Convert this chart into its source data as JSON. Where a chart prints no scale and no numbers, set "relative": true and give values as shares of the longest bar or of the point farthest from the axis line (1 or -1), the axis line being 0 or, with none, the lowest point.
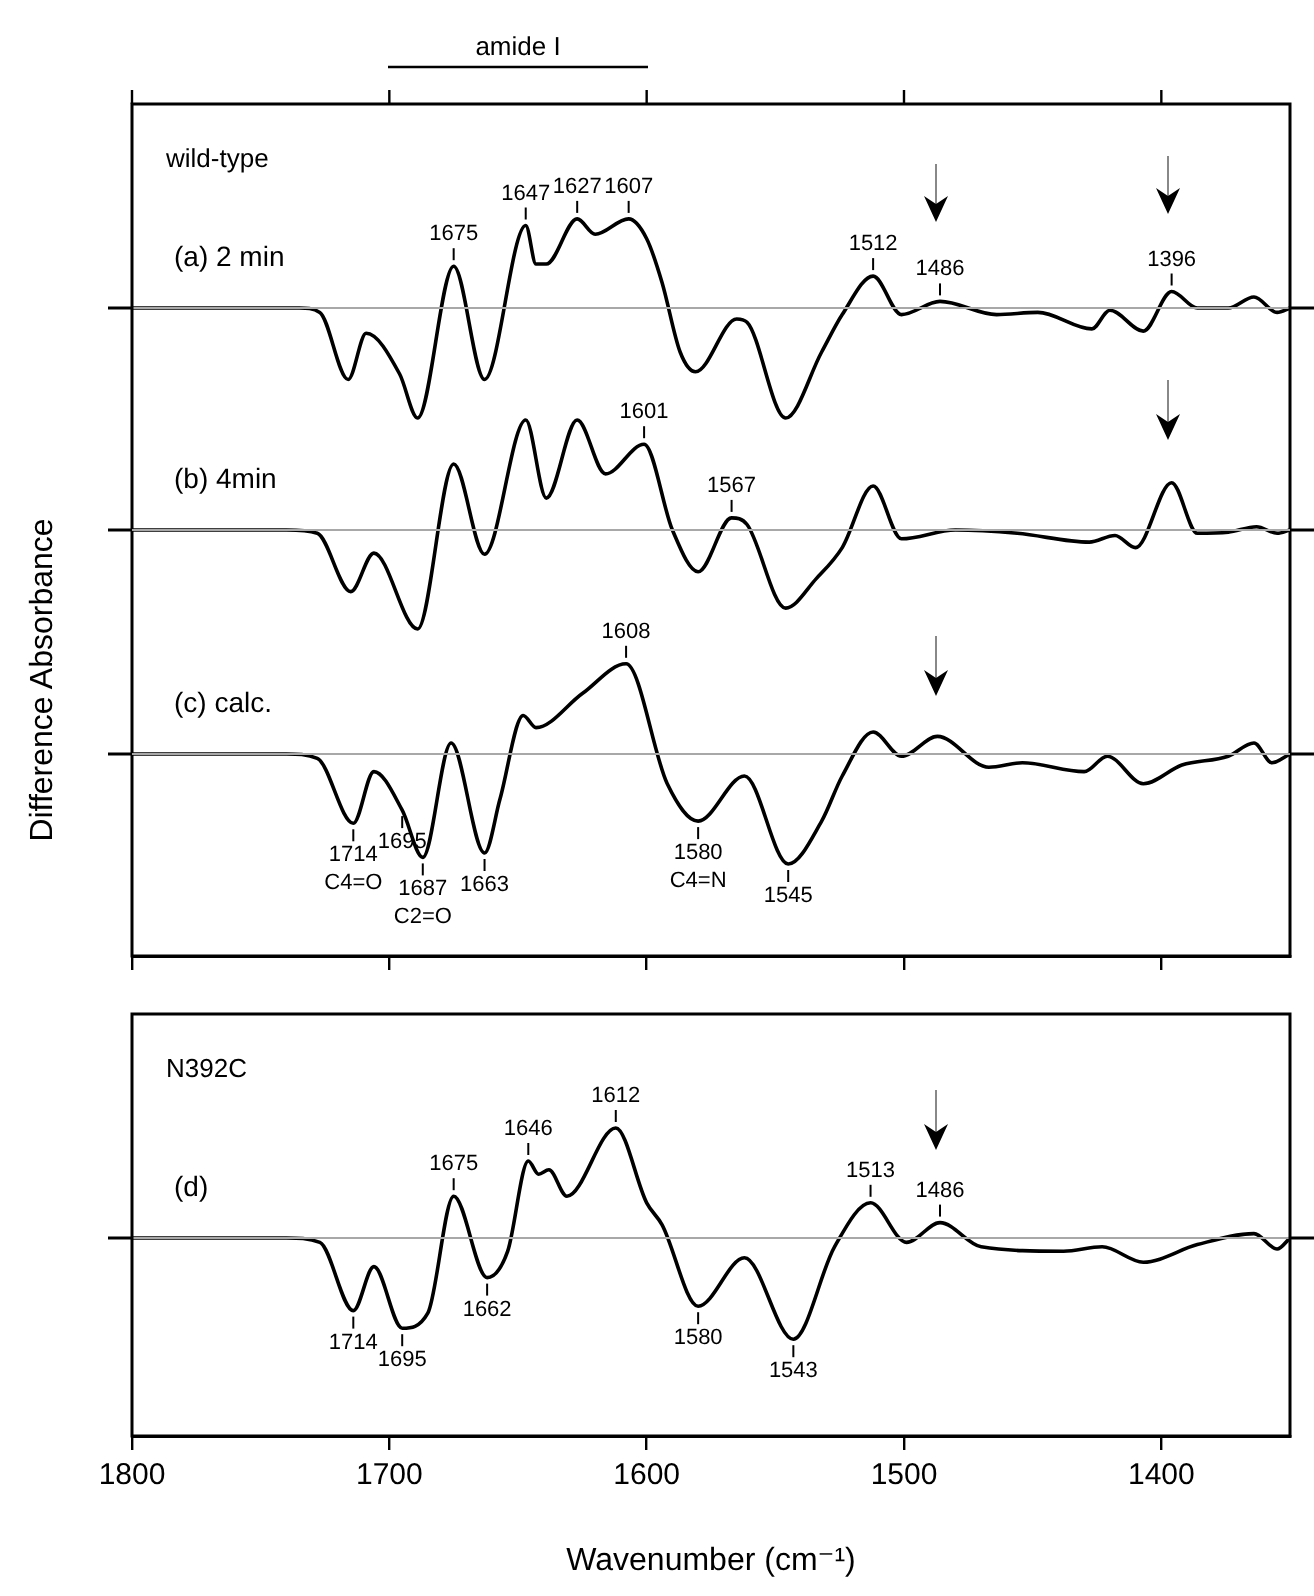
{
  "chart_data": [
    {
      "type": "line",
      "title": "wild-type",
      "ylabel": "Difference Absorbance",
      "relative": true,
      "xlim": [
        1800,
        1350
      ],
      "xticks": [
        1800,
        1700,
        1600,
        1500,
        1400
      ],
      "tick_labels": false,
      "series": [
        {
          "name": "(a) 2 min",
          "color": "#000000",
          "x": [
            1800,
            1760,
            1735,
            1727,
            1716,
            1709,
            1696,
            1689,
            1675,
            1663,
            1647,
            1643,
            1639,
            1627,
            1620,
            1607,
            1600,
            1594,
            1587,
            1581,
            1565,
            1561,
            1546,
            1532,
            1524,
            1512,
            1501,
            1486,
            1464,
            1448,
            1427,
            1420,
            1407,
            1396,
            1386,
            1374,
            1364,
            1355,
            1350
          ],
          "values": [
            0,
            0,
            0,
            -0.04,
            -0.65,
            -0.23,
            -0.6,
            -1,
            0.38,
            -0.65,
            0.75,
            0.4,
            0.4,
            0.81,
            0.67,
            0.81,
            0.63,
            0.23,
            -0.4,
            -0.58,
            -0.1,
            -0.13,
            -1,
            -0.4,
            -0.06,
            0.29,
            -0.06,
            0.06,
            -0.06,
            -0.04,
            -0.19,
            -0.02,
            -0.21,
            0.15,
            0,
            0,
            0.1,
            -0.04,
            0
          ]
        }
      ],
      "annotations": [
        "amide I",
        {
          "text": "1675",
          "x": 1675,
          "y": 0.38
        },
        {
          "text": "1647",
          "x": 1647,
          "y": 0.75
        },
        {
          "text": "1627",
          "x": 1627,
          "y": 0.81
        },
        {
          "text": "1607",
          "x": 1607,
          "y": 0.81
        },
        {
          "text": "1512",
          "x": 1512,
          "y": 0.29
        },
        {
          "text": "1486",
          "x": 1486,
          "y": 0.06
        },
        {
          "text": "1396",
          "x": 1396,
          "y": 0.15
        }
      ]
    },
    {
      "type": "line",
      "relative": true,
      "xlim": [
        1800,
        1350
      ],
      "tick_labels": false,
      "series": [
        {
          "name": "(b) 4min",
          "color": "#000000",
          "x": [
            1800,
            1740,
            1728,
            1715,
            1706,
            1689,
            1675,
            1663,
            1647,
            1639,
            1627,
            1616,
            1601,
            1590,
            1580,
            1567,
            1561,
            1546,
            1534,
            1524,
            1512,
            1501,
            1480,
            1456,
            1428,
            1418,
            1410,
            1396,
            1386,
            1374,
            1363,
            1355,
            1350
          ],
          "values": [
            0,
            0,
            -0.03,
            -0.56,
            -0.21,
            -0.9,
            0.6,
            -0.22,
            1,
            0.29,
            1,
            0.51,
            0.78,
            0,
            -0.38,
            0.11,
            0.05,
            -0.71,
            -0.44,
            -0.16,
            0.4,
            -0.08,
            0,
            -0.03,
            -0.11,
            -0.05,
            -0.16,
            0.43,
            -0.03,
            -0.02,
            0.03,
            -0.03,
            0
          ]
        }
      ],
      "annotations": [
        {
          "text": "1601",
          "x": 1601,
          "y": 0.78
        },
        {
          "text": "1567",
          "x": 1567,
          "y": 0.11
        }
      ]
    },
    {
      "type": "line",
      "relative": true,
      "xlim": [
        1800,
        1350
      ],
      "tick_labels": false,
      "series": [
        {
          "name": "(c) calc.",
          "color": "#000000",
          "x": [
            1800,
            1740,
            1728,
            1714,
            1706,
            1695,
            1687,
            1676,
            1663,
            1657,
            1648,
            1643,
            1625,
            1608,
            1592,
            1580,
            1562,
            1545,
            1532,
            1524,
            1512,
            1501,
            1487,
            1467,
            1454,
            1430,
            1421,
            1407,
            1392,
            1374,
            1364,
            1357,
            1350
          ],
          "values": [
            0,
            0,
            -0.04,
            -0.63,
            -0.16,
            -0.51,
            -0.94,
            0.1,
            -0.9,
            -0.41,
            0.35,
            0.24,
            0.55,
            0.82,
            -0.27,
            -0.61,
            -0.2,
            -1,
            -0.61,
            -0.2,
            0.2,
            -0.02,
            0.16,
            -0.12,
            -0.08,
            -0.16,
            -0.02,
            -0.27,
            -0.1,
            -0.02,
            0.1,
            -0.08,
            0
          ]
        }
      ],
      "annotations": [
        {
          "text": "1608",
          "x": 1608,
          "y": 0.82
        },
        {
          "text": "1714",
          "x": 1714,
          "y": -0.63
        },
        {
          "text": "C4=O",
          "x": 1714,
          "y": -0.63
        },
        {
          "text": "1695",
          "x": 1695,
          "y": -0.51
        },
        {
          "text": "1687",
          "x": 1687,
          "y": -0.94
        },
        {
          "text": "C2=O",
          "x": 1687,
          "y": -0.94
        },
        {
          "text": "1663",
          "x": 1663,
          "y": -0.9
        },
        {
          "text": "1580",
          "x": 1580,
          "y": -0.61
        },
        {
          "text": "C4=N",
          "x": 1580,
          "y": -0.61
        },
        {
          "text": "1545",
          "x": 1545,
          "y": -1
        }
      ]
    },
    {
      "type": "line",
      "title": "N392C",
      "xlabel": "Wavenumber (cm⁻¹)",
      "relative": true,
      "xlim": [
        1800,
        1350
      ],
      "xticks": [
        1800,
        1700,
        1600,
        1500,
        1400
      ],
      "series": [
        {
          "name": "(d)",
          "color": "#000000",
          "x": [
            1800,
            1740,
            1727,
            1714,
            1706,
            1695,
            1685,
            1675,
            1662,
            1654,
            1646,
            1642,
            1638,
            1631,
            1612,
            1600,
            1594,
            1580,
            1562,
            1543,
            1527,
            1513,
            1499,
            1486,
            1470,
            1438,
            1423,
            1407,
            1386,
            1364,
            1355,
            1350
          ],
          "values": [
            0,
            0,
            -0.04,
            -0.66,
            -0.26,
            -0.82,
            -0.68,
            0.38,
            -0.36,
            -0.12,
            0.7,
            0.58,
            0.62,
            0.38,
            1,
            0.32,
            0.12,
            -0.62,
            -0.18,
            -0.92,
            -0.08,
            0.32,
            -0.04,
            0.14,
            -0.08,
            -0.12,
            -0.08,
            -0.22,
            -0.06,
            0.04,
            -0.1,
            0
          ]
        }
      ],
      "annotations": [
        {
          "text": "1675",
          "x": 1675,
          "y": 0.38
        },
        {
          "text": "1646",
          "x": 1646,
          "y": 0.7
        },
        {
          "text": "1612",
          "x": 1612,
          "y": 1
        },
        {
          "text": "1714",
          "x": 1714,
          "y": -0.66
        },
        {
          "text": "1695",
          "x": 1695,
          "y": -0.82
        },
        {
          "text": "1662",
          "x": 1662,
          "y": -0.36
        },
        {
          "text": "1580",
          "x": 1580,
          "y": -0.62
        },
        {
          "text": "1543",
          "x": 1543,
          "y": -0.92
        },
        {
          "text": "1513",
          "x": 1513,
          "y": 0.32
        },
        {
          "text": "1486",
          "x": 1486,
          "y": 0.14
        }
      ]
    }
  ]
}
